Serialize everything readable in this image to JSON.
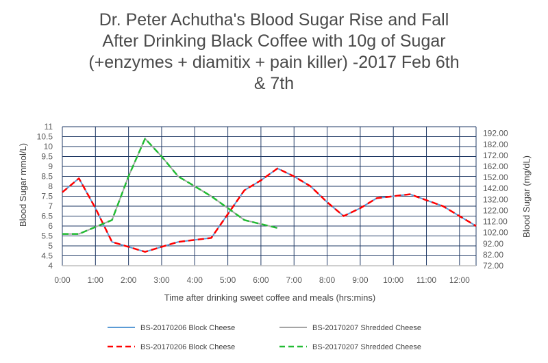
{
  "chart_data": {
    "type": "line",
    "title_lines": [
      "Dr. Peter Achutha's Blood Sugar Rise and Fall",
      "After Drinking Black Coffee with 10g of Sugar",
      "(+enzymes + diamitix + pain killer) -2017 Feb 6th",
      "& 7th"
    ],
    "xlabel": "Time after drinking sweet coffee and meals (hrs:mins)",
    "ylabel": "Blood Sugar mmol/L)",
    "y2label": "Blood Sugar (mg/dL)",
    "ylim": [
      4,
      11
    ],
    "y2lim": [
      72,
      198
    ],
    "xlim": [
      0,
      12.5
    ],
    "x_tick_labels": [
      "0:00",
      "1:00",
      "2:00",
      "3:00",
      "4:00",
      "5:00",
      "6:00",
      "7:00",
      "8:00",
      "9:00",
      "10:00",
      "11:00",
      "12:00"
    ],
    "y_tick_labels": [
      "4",
      "4.5",
      "5",
      "5.5",
      "6",
      "6.5",
      "7",
      "7.5",
      "8",
      "8.5",
      "9",
      "9.5",
      "10",
      "10.5",
      "11"
    ],
    "y2_tick_labels": [
      "72.00",
      "82.00",
      "92.00",
      "102.00",
      "112.00",
      "122.00",
      "132.00",
      "142.00",
      "152.00",
      "162.00",
      "172.00",
      "182.00",
      "192.00"
    ],
    "grid": true,
    "series": [
      {
        "name": "BS-20170206 Block Cheese",
        "color": "#5b9bd5",
        "style": "solid",
        "x": [
          0,
          0.5,
          1,
          1.5,
          2,
          2.5,
          3,
          3.5,
          4,
          4.5,
          5,
          5.5,
          6,
          6.5,
          7,
          7.5,
          8,
          8.5,
          9,
          9.5,
          10,
          10.5,
          11,
          11.5,
          12,
          12.5
        ],
        "y": [
          7.7,
          8.4,
          6.9,
          5.2,
          4.95,
          4.7,
          4.95,
          5.2,
          5.3,
          5.4,
          6.6,
          7.8,
          8.3,
          8.9,
          8.5,
          8.0,
          7.2,
          6.5,
          6.9,
          7.4,
          7.5,
          7.6,
          7.3,
          7.0,
          6.5,
          6.0
        ]
      },
      {
        "name": "BS-20170207 Shredded Cheese",
        "color": "#a5a5a5",
        "style": "solid",
        "x": [
          0,
          0.5,
          1,
          1.5,
          2,
          2.5,
          3,
          3.5,
          4,
          4.5,
          5,
          5.5,
          6,
          6.5
        ],
        "y": [
          5.6,
          5.6,
          5.95,
          6.3,
          8.5,
          10.4,
          9.5,
          8.5,
          8.0,
          7.5,
          6.9,
          6.3,
          6.1,
          5.9
        ]
      },
      {
        "name": "BS-20170206 Block Cheese",
        "color": "#ff0000",
        "style": "dashed",
        "x": [
          0,
          0.5,
          1,
          1.5,
          2,
          2.5,
          3,
          3.5,
          4,
          4.5,
          5,
          5.5,
          6,
          6.5,
          7,
          7.5,
          8,
          8.5,
          9,
          9.5,
          10,
          10.5,
          11,
          11.5,
          12,
          12.5
        ],
        "y": [
          7.7,
          8.4,
          6.9,
          5.2,
          4.95,
          4.7,
          4.95,
          5.2,
          5.3,
          5.4,
          6.6,
          7.8,
          8.3,
          8.9,
          8.5,
          8.0,
          7.2,
          6.5,
          6.9,
          7.4,
          7.5,
          7.6,
          7.3,
          7.0,
          6.5,
          6.0
        ]
      },
      {
        "name": "BS-20170207 Shredded Cheese",
        "color": "#22bb33",
        "style": "dashed",
        "x": [
          0,
          0.5,
          1,
          1.5,
          2,
          2.5,
          3,
          3.5,
          4,
          4.5,
          5,
          5.5,
          6,
          6.5
        ],
        "y": [
          5.6,
          5.6,
          5.95,
          6.3,
          8.5,
          10.4,
          9.5,
          8.5,
          8.0,
          7.5,
          6.9,
          6.3,
          6.1,
          5.9
        ]
      }
    ],
    "legend": "bottom"
  }
}
